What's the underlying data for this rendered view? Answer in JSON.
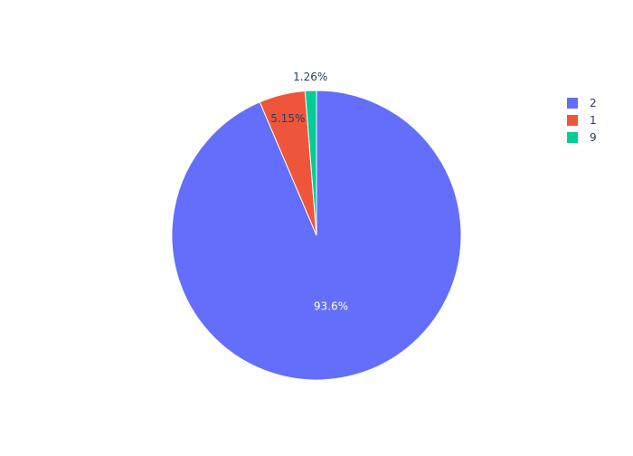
{
  "chart_data": {
    "type": "pie",
    "labels": [
      "2",
      "1",
      "9"
    ],
    "values": [
      93.6,
      5.15,
      1.26
    ],
    "text_labels": [
      "93.6%",
      "5.15%",
      "1.26%"
    ],
    "colors": [
      "#636efa",
      "#EF553B",
      "#00cc96"
    ],
    "direction": "clockwise",
    "legend_placement": "top-right"
  }
}
